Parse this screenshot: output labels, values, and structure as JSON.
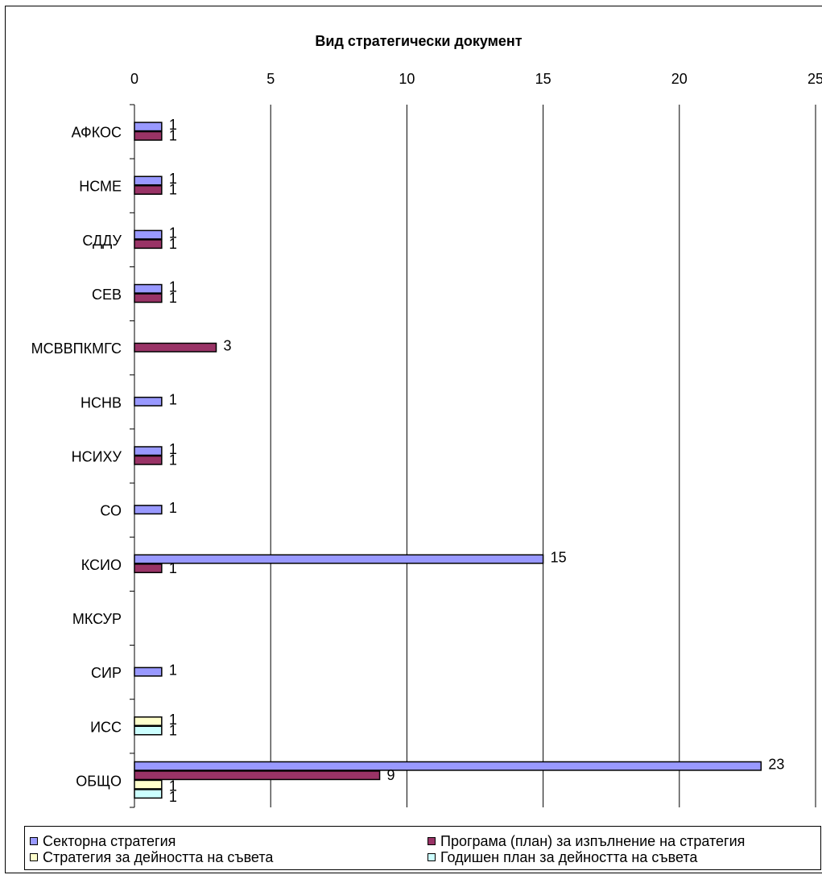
{
  "chart_data": {
    "type": "bar",
    "orientation": "horizontal",
    "title": "Вид стратегически документ",
    "xlim": [
      0,
      25
    ],
    "x_ticks": [
      "0",
      "5",
      "10",
      "15",
      "20",
      "25"
    ],
    "grid": true,
    "legend_position": "bottom",
    "categories": [
      "АФКОС",
      "НСМЕ",
      "СДДУ",
      "СЕВ",
      "МСВВПКМГС",
      "НСНВ",
      "НСИХУ",
      "СО",
      "КСИО",
      "МКСУР",
      "СИР",
      "ИСС",
      "ОБЩО"
    ],
    "series": [
      {
        "name": "Секторна стратегия",
        "color": "#9999ff",
        "values": [
          1,
          1,
          1,
          1,
          null,
          1,
          1,
          1,
          15,
          null,
          1,
          null,
          23
        ]
      },
      {
        "name": "Програма (план) за изпълнение на стратегия",
        "color": "#993366",
        "values": [
          1,
          1,
          1,
          1,
          3,
          null,
          1,
          null,
          1,
          null,
          null,
          null,
          9
        ]
      },
      {
        "name": "Стратегия за дейността на съвета",
        "color": "#ffffcc",
        "values": [
          null,
          null,
          null,
          null,
          null,
          null,
          null,
          null,
          null,
          null,
          null,
          1,
          1
        ]
      },
      {
        "name": "Годишен план за дейността на съвета",
        "color": "#ccffff",
        "values": [
          null,
          null,
          null,
          null,
          null,
          null,
          null,
          null,
          null,
          null,
          null,
          1,
          1
        ]
      }
    ]
  }
}
